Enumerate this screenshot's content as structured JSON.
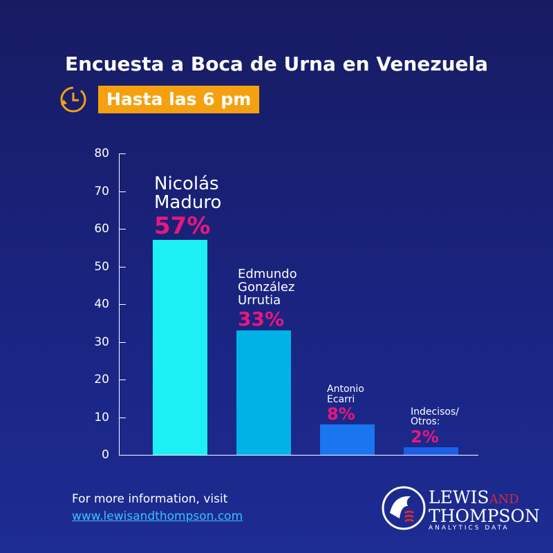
{
  "chart_data": {
    "type": "bar",
    "title": "Encuesta a Boca de Urna en Venezuela",
    "subtitle": "Hasta las 6 pm",
    "categories": [
      "Nicolás Maduro",
      "Edmundo González Urrutia",
      "Antonio Ecarri",
      "Indecisos/ Otros:"
    ],
    "values": [
      57,
      33,
      8,
      2
    ],
    "value_labels": [
      "57%",
      "33%",
      "8%",
      "2%"
    ],
    "colors": [
      "#1cf0f4",
      "#00b2e6",
      "#1976ee",
      "#1c5fe6"
    ],
    "label_color": "#e8177f",
    "ylim": [
      0,
      80
    ],
    "yticks": [
      0,
      10,
      20,
      30,
      40,
      50,
      60,
      70,
      80
    ]
  },
  "footer": {
    "text": "For more information, visit",
    "link": "www.lewisandthompson.com"
  },
  "logo": {
    "name1": "LEWIS",
    "name2": "AND",
    "name3": "THOMPSON",
    "tagline": "ANALYTICS DATA"
  }
}
